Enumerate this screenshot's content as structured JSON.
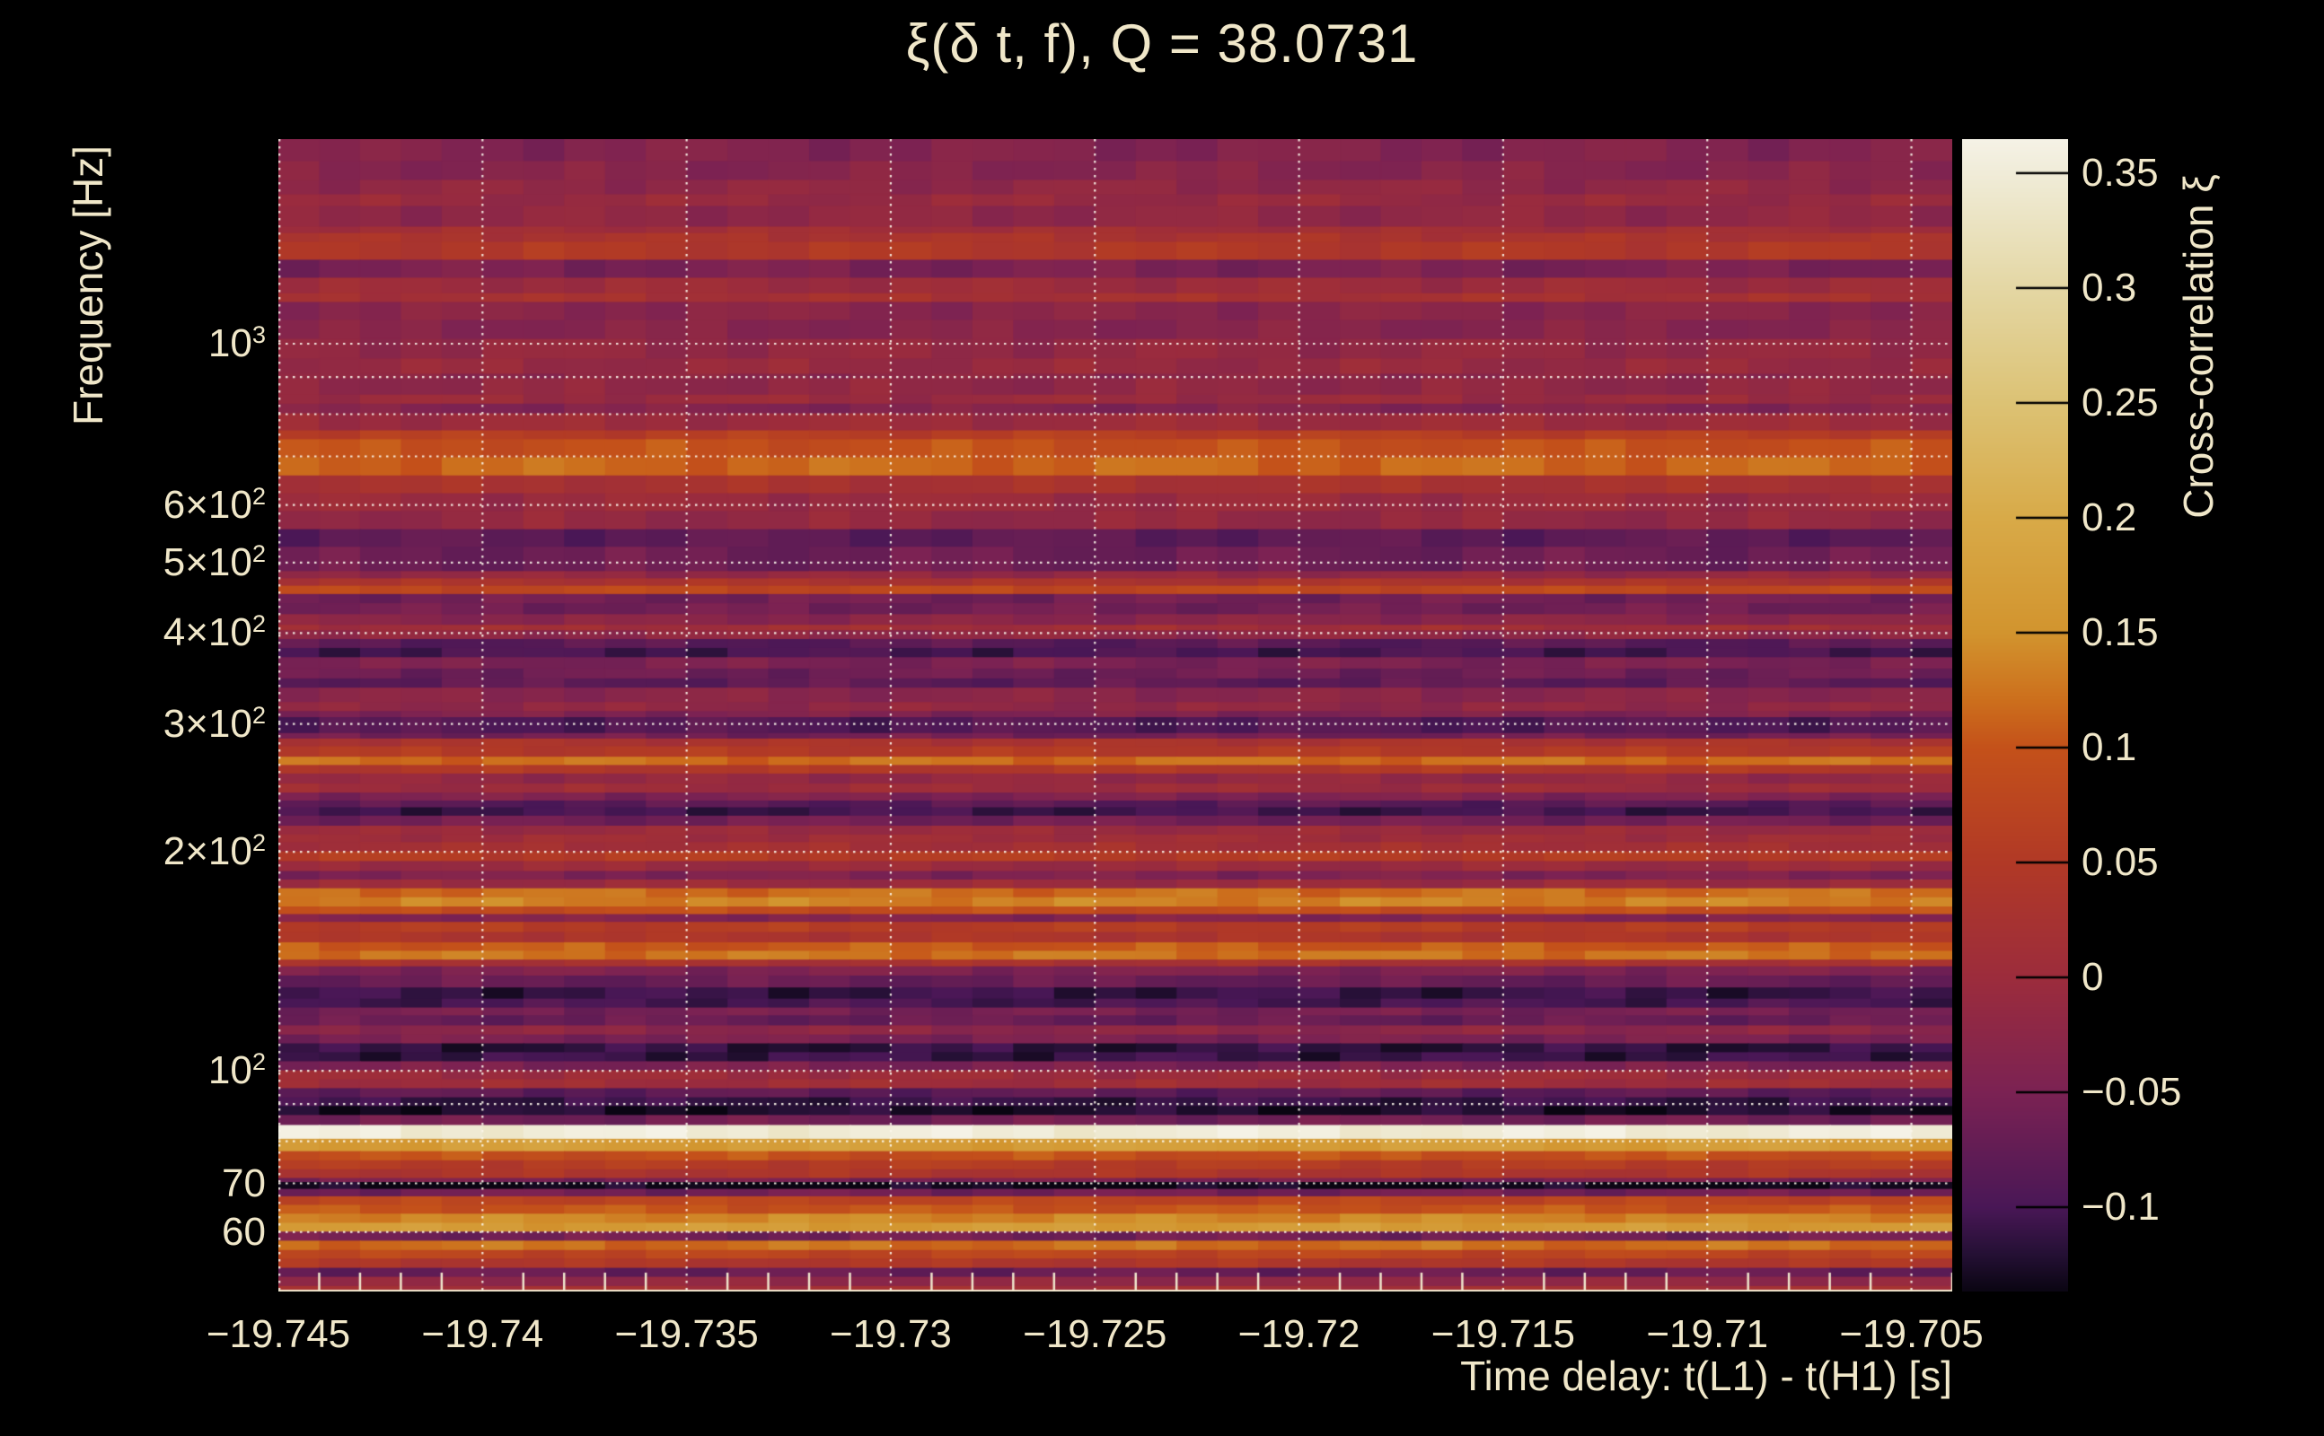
{
  "title": "ξ(δ t, f), Q = 38.0731",
  "colors": {
    "background": "#000000",
    "text": "#f0e7c9",
    "grid": "rgba(252,247,235,0.92)",
    "axis_line": "#efe6cc",
    "colorbar_tick": "#000000"
  },
  "x_axis": {
    "title": "Time delay: t(L1) - t(H1) [s]",
    "ticks": [
      {
        "label": "−19.745",
        "value": -19.745
      },
      {
        "label": "−19.74",
        "value": -19.74
      },
      {
        "label": "−19.735",
        "value": -19.735
      },
      {
        "label": "−19.73",
        "value": -19.73
      },
      {
        "label": "−19.725",
        "value": -19.725
      },
      {
        "label": "−19.72",
        "value": -19.72
      },
      {
        "label": "−19.715",
        "value": -19.715
      },
      {
        "label": "−19.71",
        "value": -19.71
      },
      {
        "label": "−19.705",
        "value": -19.705
      }
    ]
  },
  "y_axis": {
    "title": "Frequency [Hz]",
    "ticks": [
      {
        "base": "10",
        "exp": "3",
        "value": 1000
      },
      {
        "base": "6×10",
        "exp": "2",
        "value": 600
      },
      {
        "base": "5×10",
        "exp": "2",
        "value": 500
      },
      {
        "base": "4×10",
        "exp": "2",
        "value": 400
      },
      {
        "base": "3×10",
        "exp": "2",
        "value": 300
      },
      {
        "base": "2×10",
        "exp": "2",
        "value": 200
      },
      {
        "base": "10",
        "exp": "2",
        "value": 100
      },
      {
        "base": "70",
        "exp": "",
        "value": 70
      },
      {
        "base": "60",
        "exp": "",
        "value": 60
      }
    ]
  },
  "colorbar": {
    "title": "Cross-correlation ξ",
    "vmin": -0.1367,
    "vmax": 0.3648,
    "ticks": [
      {
        "label": "0.35",
        "value": 0.35
      },
      {
        "label": "0.3",
        "value": 0.3
      },
      {
        "label": "0.25",
        "value": 0.25
      },
      {
        "label": "0.2",
        "value": 0.2
      },
      {
        "label": "0.15",
        "value": 0.15
      },
      {
        "label": "0.1",
        "value": 0.1
      },
      {
        "label": "0.05",
        "value": 0.05
      },
      {
        "label": "0",
        "value": 0
      },
      {
        "label": "−0.05",
        "value": -0.05
      },
      {
        "label": "−0.1",
        "value": -0.1
      }
    ]
  },
  "chart_data": {
    "type": "heatmap",
    "xlabel": "Time delay: t(L1) - t(H1) [s]",
    "ylabel": "Frequency [Hz]",
    "zlabel": "Cross-correlation ξ",
    "xlim": [
      -19.745,
      -19.704
    ],
    "ylim": [
      49.7,
      1912
    ],
    "y_scale": "log",
    "grid": "dotted-white",
    "time_bins": 41,
    "noise_amp": 0.011,
    "x_gridlines": [
      -19.745,
      -19.74,
      -19.735,
      -19.73,
      -19.725,
      -19.72,
      -19.715,
      -19.71,
      -19.705
    ],
    "y_gridlines": [
      60,
      70,
      80,
      90,
      100,
      200,
      300,
      400,
      500,
      600,
      700,
      800,
      900,
      1000
    ],
    "minor_tick_step": 0.001,
    "colormap_stops": [
      [
        -0.1367,
        "#0a0512"
      ],
      [
        -0.12,
        "#251035"
      ],
      [
        -0.1,
        "#491756"
      ],
      [
        -0.05,
        "#7b2253"
      ],
      [
        0.0,
        "#9c2c3c"
      ],
      [
        0.05,
        "#b13926"
      ],
      [
        0.1,
        "#c4511a"
      ],
      [
        0.12,
        "#cc6e1c"
      ],
      [
        0.15,
        "#d2942e"
      ],
      [
        0.2,
        "#d8aa48"
      ],
      [
        0.25,
        "#dcc274"
      ],
      [
        0.3,
        "#e4d7a4"
      ],
      [
        0.35,
        "#f0ecd8"
      ],
      [
        0.3648,
        "#f5f2e6"
      ]
    ],
    "bands": [
      [
        1912,
        1781,
        -0.04
      ],
      [
        1781,
        1678,
        -0.035
      ],
      [
        1678,
        1603,
        -0.02
      ],
      [
        1603,
        1545,
        -0.01
      ],
      [
        1545,
        1447,
        -0.02
      ],
      [
        1447,
        1418,
        0.01
      ],
      [
        1418,
        1379,
        0.03
      ],
      [
        1379,
        1303,
        0.045
      ],
      [
        1303,
        1231,
        -0.05
      ],
      [
        1231,
        1172,
        0.0
      ],
      [
        1172,
        1140,
        0.02
      ],
      [
        1140,
        1077,
        -0.03
      ],
      [
        1077,
        1014,
        -0.035
      ],
      [
        1014,
        953,
        -0.015
      ],
      [
        953,
        908,
        -0.01
      ],
      [
        908,
        895,
        -0.025
      ],
      [
        895,
        850,
        -0.02
      ],
      [
        850,
        826,
        -0.005
      ],
      [
        826,
        801,
        -0.04
      ],
      [
        801,
        759,
        0.0
      ],
      [
        759,
        738,
        0.06
      ],
      [
        738,
        697,
        0.095
      ],
      [
        697,
        658,
        0.115
      ],
      [
        658,
        622,
        0.025
      ],
      [
        622,
        588,
        -0.005
      ],
      [
        588,
        555,
        -0.015
      ],
      [
        555,
        525,
        -0.08
      ],
      [
        525,
        486,
        -0.065
      ],
      [
        486,
        475,
        -0.015
      ],
      [
        475,
        464,
        0.03
      ],
      [
        464,
        452,
        0.08
      ],
      [
        452,
        439,
        -0.06
      ],
      [
        439,
        424,
        -0.06
      ],
      [
        424,
        410,
        -0.03
      ],
      [
        410,
        403,
        0.01
      ],
      [
        403,
        392,
        -0.02
      ],
      [
        392,
        381,
        -0.085
      ],
      [
        381,
        370,
        -0.1
      ],
      [
        370,
        357,
        -0.05
      ],
      [
        357,
        346,
        -0.065
      ],
      [
        346,
        336,
        -0.08
      ],
      [
        336,
        321,
        -0.03
      ],
      [
        321,
        312,
        -0.02
      ],
      [
        312,
        306,
        -0.045
      ],
      [
        306,
        291,
        -0.09
      ],
      [
        291,
        286,
        -0.06
      ],
      [
        286,
        279,
        0.03
      ],
      [
        279,
        270,
        0.05
      ],
      [
        270,
        263,
        0.12
      ],
      [
        263,
        256,
        0.045
      ],
      [
        256,
        248,
        -0.015
      ],
      [
        248,
        241,
        0.0
      ],
      [
        241,
        235,
        -0.045
      ],
      [
        235,
        230,
        -0.085
      ],
      [
        230,
        224,
        -0.105
      ],
      [
        224,
        217,
        -0.06
      ],
      [
        217,
        211,
        -0.005
      ],
      [
        211,
        206,
        0.005
      ],
      [
        206,
        200,
        0.015
      ],
      [
        200,
        194,
        0.055
      ],
      [
        194,
        188,
        -0.005
      ],
      [
        188,
        183,
        -0.045
      ],
      [
        183,
        178,
        -0.005
      ],
      [
        178,
        173,
        0.12
      ],
      [
        173,
        168,
        0.135
      ],
      [
        168,
        164,
        0.09
      ],
      [
        164,
        160,
        -0.04
      ],
      [
        160,
        155,
        0.055
      ],
      [
        155,
        150,
        0.035
      ],
      [
        150,
        146,
        0.105
      ],
      [
        146,
        142,
        0.125
      ],
      [
        142,
        139,
        0.025
      ],
      [
        139,
        135,
        -0.045
      ],
      [
        135,
        130,
        -0.07
      ],
      [
        130,
        125.5,
        -0.11
      ],
      [
        125.5,
        122,
        -0.1
      ],
      [
        122,
        119,
        -0.055
      ],
      [
        119,
        115.3,
        -0.07
      ],
      [
        115.3,
        112,
        -0.025
      ],
      [
        112,
        108.9,
        -0.05
      ],
      [
        108.9,
        105.9,
        -0.115
      ],
      [
        105.9,
        102.9,
        -0.11
      ],
      [
        102.9,
        100,
        -0.05
      ],
      [
        100,
        97.2,
        0.0
      ],
      [
        97.2,
        94.5,
        0.005
      ],
      [
        94.5,
        91.8,
        -0.08
      ],
      [
        91.8,
        89.3,
        -0.11
      ],
      [
        89.3,
        86.8,
        -0.125
      ],
      [
        86.8,
        84.1,
        -0.06
      ],
      [
        84.1,
        80.5,
        0.35
      ],
      [
        80.5,
        77.4,
        0.17
      ],
      [
        77.4,
        75.2,
        0.095
      ],
      [
        75.2,
        73.1,
        0.055
      ],
      [
        73.1,
        71.1,
        0.035
      ],
      [
        71.1,
        70.2,
        -0.05
      ],
      [
        70.2,
        68.7,
        -0.135
      ],
      [
        68.7,
        67.1,
        -0.06
      ],
      [
        67.1,
        65.3,
        0.075
      ],
      [
        65.3,
        63.5,
        0.1
      ],
      [
        63.5,
        61.7,
        0.14
      ],
      [
        61.7,
        60,
        0.165
      ],
      [
        60,
        58.3,
        -0.06
      ],
      [
        58.3,
        56.6,
        0.12
      ],
      [
        56.6,
        55.1,
        0.075
      ],
      [
        55.1,
        53.5,
        0.04
      ],
      [
        53.5,
        52,
        -0.07
      ],
      [
        52,
        50.5,
        -0.02
      ],
      [
        50.5,
        49.7,
        0.015
      ]
    ]
  }
}
